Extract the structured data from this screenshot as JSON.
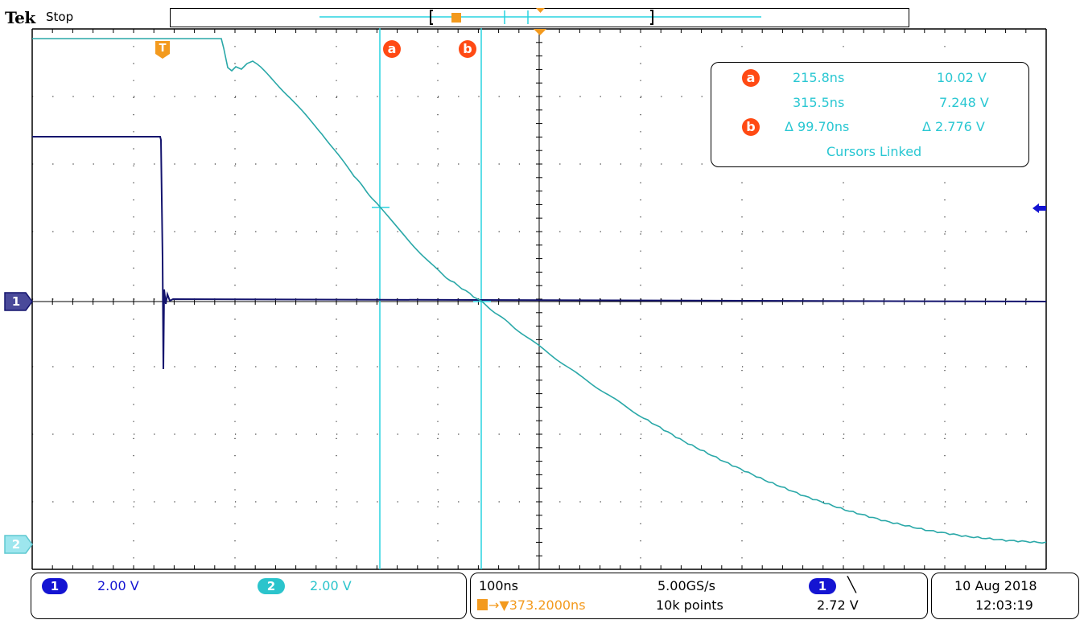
{
  "header": {
    "brand": "Tek",
    "acq_state": "Stop"
  },
  "markers": {
    "ch1": "1",
    "ch2": "2",
    "trigger": "T",
    "cursor_a": "a",
    "cursor_b": "b"
  },
  "cursor_readout": {
    "a_time": "215.8ns",
    "a_value": "10.02 V",
    "b_time": "315.5ns",
    "b_value": "7.248 V",
    "delta_time": "Δ 99.70ns",
    "delta_value": "Δ 2.776 V",
    "mode": "Cursors Linked"
  },
  "channels": {
    "ch1": {
      "label": "1",
      "scale": "2.00 V",
      "color": "#1414d2"
    },
    "ch2": {
      "label": "2",
      "scale": "2.00 V",
      "color": "#2bc4cc"
    }
  },
  "timebase": {
    "scale": "100ns",
    "sample_rate": "5.00GS/s",
    "trigger_pos": "→▼373.2000ns",
    "record_length": "10k points"
  },
  "trigger": {
    "source": "1",
    "slope": "╲",
    "level": "2.72 V"
  },
  "datetime": {
    "date": "10 Aug 2018",
    "time": "12:03:19"
  },
  "colors": {
    "trace_ch1": "#14146e",
    "trace_ch2": "#2aa8a8",
    "cursor": "#29d3e0",
    "cursor_badge": "#ff4a14",
    "trigger": "#f39a1e",
    "grid": "#000000"
  }
}
